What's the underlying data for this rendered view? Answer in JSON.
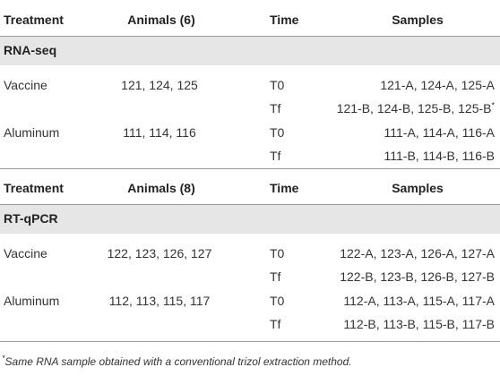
{
  "sections": [
    {
      "header": [
        "Treatment",
        "Animals (6)",
        "Time",
        "Samples"
      ],
      "label": "RNA-seq",
      "rows": [
        [
          "Vaccine",
          "121, 124, 125",
          "T0",
          "121-A, 124-A, 125-A"
        ],
        [
          null,
          null,
          "Tf",
          "121-B, 124-B, 125-B, 125-B"
        ],
        [
          "Aluminum",
          "111, 114, 116",
          "T0",
          "111-A, 114-A, 116-A"
        ],
        [
          null,
          null,
          "Tf",
          "111-B, 114-B, 116-B"
        ]
      ]
    },
    {
      "header": [
        "Treatment",
        "Animals (8)",
        "Time",
        "Samples"
      ],
      "label": "RT-qPCR",
      "rows": [
        [
          "Vaccine",
          "122, 123, 126, 127",
          "T0",
          "122-A, 123-A, 126-A, 127-A"
        ],
        [
          null,
          null,
          "Tf",
          "122-B, 123-B, 126-B, 127-B"
        ],
        [
          "Aluminum",
          "112, 113, 115, 117",
          "T0",
          "112-A, 113-A, 115-A, 117-A"
        ],
        [
          null,
          null,
          "Tf",
          "112-B, 113-B, 115-B, 117-B"
        ]
      ]
    }
  ],
  "footnote": {
    "mark": "*",
    "text": "Same RNA sample obtained with a conventional trizol extraction method."
  }
}
